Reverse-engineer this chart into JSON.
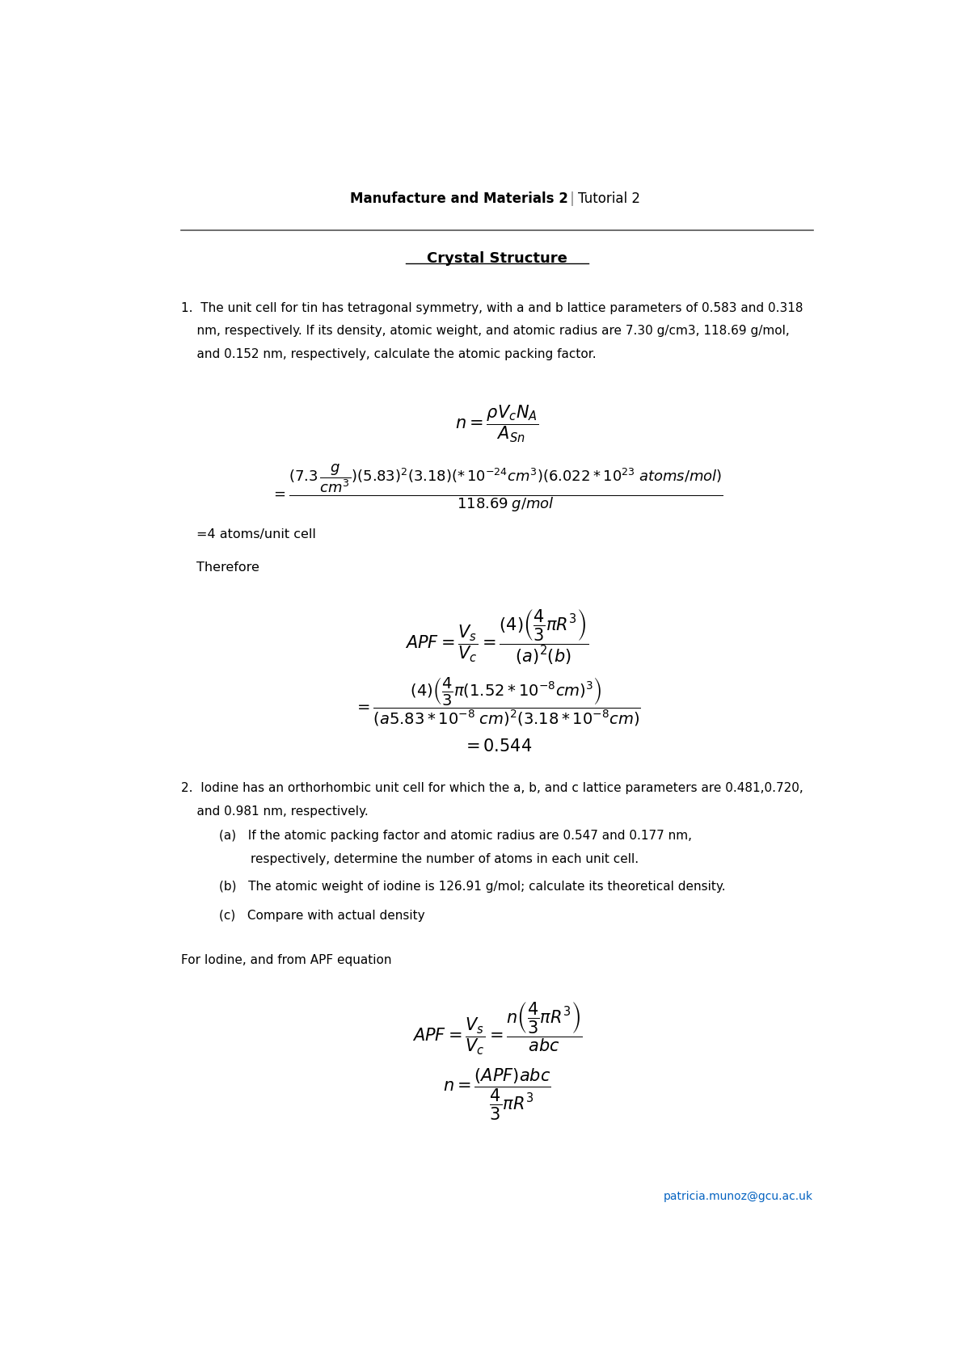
{
  "page_width": 12.0,
  "page_height": 16.97,
  "bg_color": "#ffffff",
  "header_bold": "Manufacture and Materials 2",
  "header_regular": "Tutorial 2",
  "title": "Crystal Structure",
  "q1_line1": "1.  The unit cell for tin has tetragonal symmetry, with a and b lattice parameters of 0.583 and 0.318",
  "q1_line2": "    nm, respectively. If its density, atomic weight, and atomic radius are 7.30 g/cm3, 118.69 g/mol,",
  "q1_line3": "    and 0.152 nm, respectively, calculate the atomic packing factor.",
  "result1": "=4 atoms/unit cell",
  "therefore": "Therefore",
  "q2_line1": "2.  Iodine has an orthorhombic unit cell for which the a, b, and c lattice parameters are 0.481,0.720,",
  "q2_line2": "    and 0.981 nm, respectively.",
  "q2a_line1": "(a)   If the atomic packing factor and atomic radius are 0.547 and 0.177 nm,",
  "q2a_line2": "        respectively, determine the number of atoms in each unit cell.",
  "q2b_line1": "(b)   The atomic weight of iodine is 126.91 g/mol; calculate its theoretical density.",
  "q2c_line1": "(c)   Compare with actual density",
  "iodine_label": "For Iodine, and from APF equation",
  "email": "patricia.munoz@gcu.ac.uk",
  "email_color": "#0563C1",
  "text_color": "#000000",
  "line_color": "#555555"
}
